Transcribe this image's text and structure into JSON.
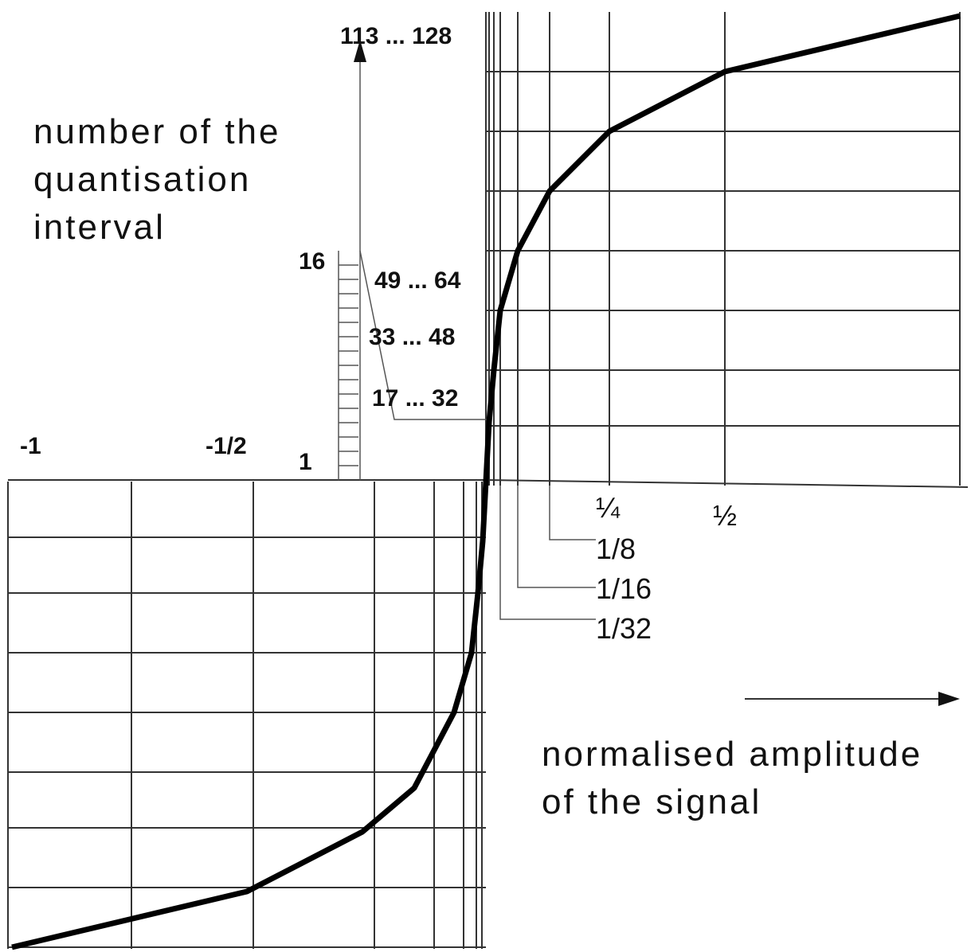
{
  "y_axis": {
    "label_lines": [
      "number of the",
      "quantisation",
      "interval"
    ],
    "top_label": "113 ... 128",
    "segment_labels": [
      "49 ... 64",
      "33 ... 48",
      "17 ... 32"
    ],
    "scale_top": "16",
    "scale_bottom": "1"
  },
  "x_axis": {
    "label_lines": [
      "normalised amplitude",
      "of the signal"
    ],
    "negative_labels": [
      "-1",
      "-1/2"
    ],
    "positive_labels": [
      "¼",
      "½"
    ],
    "small_labels": [
      "1/8",
      "1/16",
      "1/32"
    ]
  }
}
